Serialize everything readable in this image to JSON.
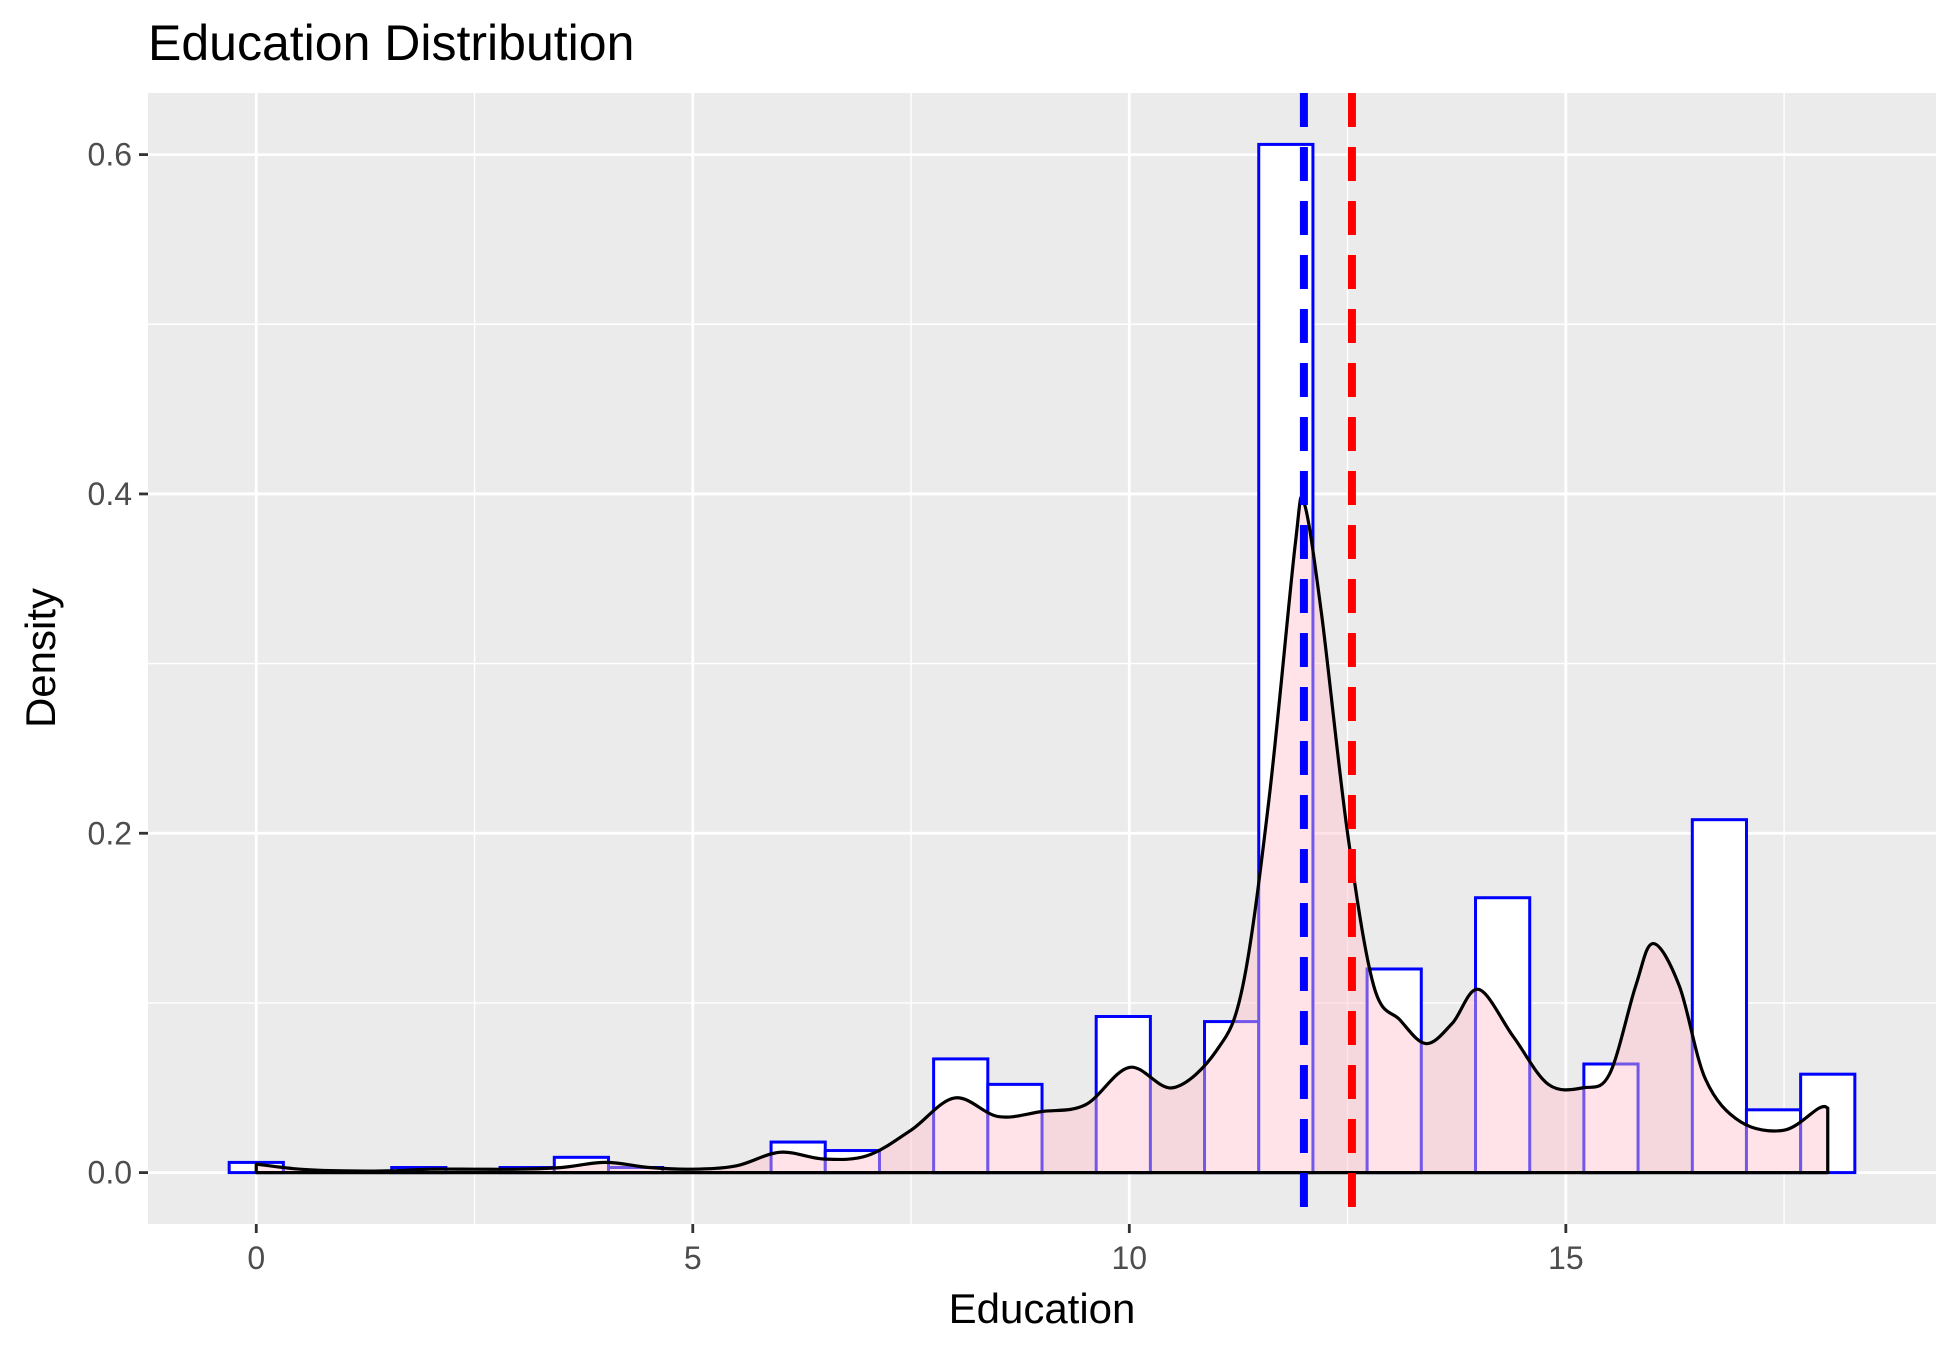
{
  "chart_data": {
    "type": "histogram",
    "title": "Education Distribution",
    "xlabel": "Education",
    "ylabel": "Density",
    "xlim": [
      -1.24,
      19.24
    ],
    "ylim": [
      -0.0303,
      0.6363
    ],
    "x_ticks": [
      0,
      5,
      10,
      15
    ],
    "x_tick_labels": [
      "0",
      "5",
      "10",
      "15"
    ],
    "y_ticks": [
      0.0,
      0.2,
      0.4,
      0.6
    ],
    "y_tick_labels": [
      "0.0",
      "0.2",
      "0.4",
      "0.6"
    ],
    "grid": true,
    "bin_width": 0.6207,
    "histogram": {
      "bin_centers": [
        0,
        0.621,
        1.241,
        1.862,
        2.483,
        3.103,
        3.724,
        4.345,
        4.966,
        5.586,
        6.207,
        6.828,
        7.448,
        8.069,
        8.69,
        9.31,
        9.931,
        10.552,
        11.172,
        11.793,
        12.414,
        13.034,
        13.655,
        14.276,
        14.897,
        15.517,
        16.138,
        16.759,
        17.379,
        18.0
      ],
      "density": [
        0.006,
        0,
        0,
        0.003,
        0,
        0.003,
        0.009,
        0.003,
        0,
        0,
        0.018,
        0.013,
        0,
        0.067,
        0.052,
        0,
        0.092,
        0,
        0.089,
        0.606,
        0,
        0.12,
        0,
        0.162,
        0,
        0.064,
        0,
        0.208,
        0.037,
        0.058
      ],
      "outline_color": "#0000ff",
      "fill_color": "#ffffff"
    },
    "density_curve": {
      "x": [
        0,
        0.5,
        1,
        1.5,
        2,
        2.5,
        3,
        3.5,
        4,
        4.5,
        5,
        5.5,
        6,
        6.5,
        7,
        7.5,
        8,
        8.5,
        9,
        9.5,
        10,
        10.5,
        11,
        11.3,
        11.6,
        11.9,
        12.0,
        12.2,
        12.5,
        12.8,
        13.1,
        13.4,
        13.7,
        14.0,
        14.4,
        14.8,
        15.2,
        15.5,
        15.8,
        16.0,
        16.3,
        16.6,
        17.0,
        17.5,
        17.9,
        18.0
      ],
      "y": [
        0.005,
        0.002,
        0.001,
        0.001,
        0.002,
        0.002,
        0.002,
        0.003,
        0.006,
        0.003,
        0.002,
        0.004,
        0.012,
        0.008,
        0.01,
        0.025,
        0.044,
        0.033,
        0.036,
        0.04,
        0.062,
        0.05,
        0.072,
        0.11,
        0.22,
        0.37,
        0.395,
        0.33,
        0.2,
        0.11,
        0.09,
        0.076,
        0.088,
        0.108,
        0.08,
        0.052,
        0.05,
        0.058,
        0.11,
        0.135,
        0.11,
        0.055,
        0.03,
        0.025,
        0.038,
        0.038
      ],
      "line_color": "#000000",
      "fill_color": "#ffc0cb"
    },
    "vlines": [
      {
        "x": 12.0,
        "color": "#0000ff",
        "style": "dashed"
      },
      {
        "x": 12.55,
        "color": "#ff0000",
        "style": "dashed"
      }
    ],
    "panel_background": "#ebebeb",
    "grid_color": "#ffffff"
  }
}
